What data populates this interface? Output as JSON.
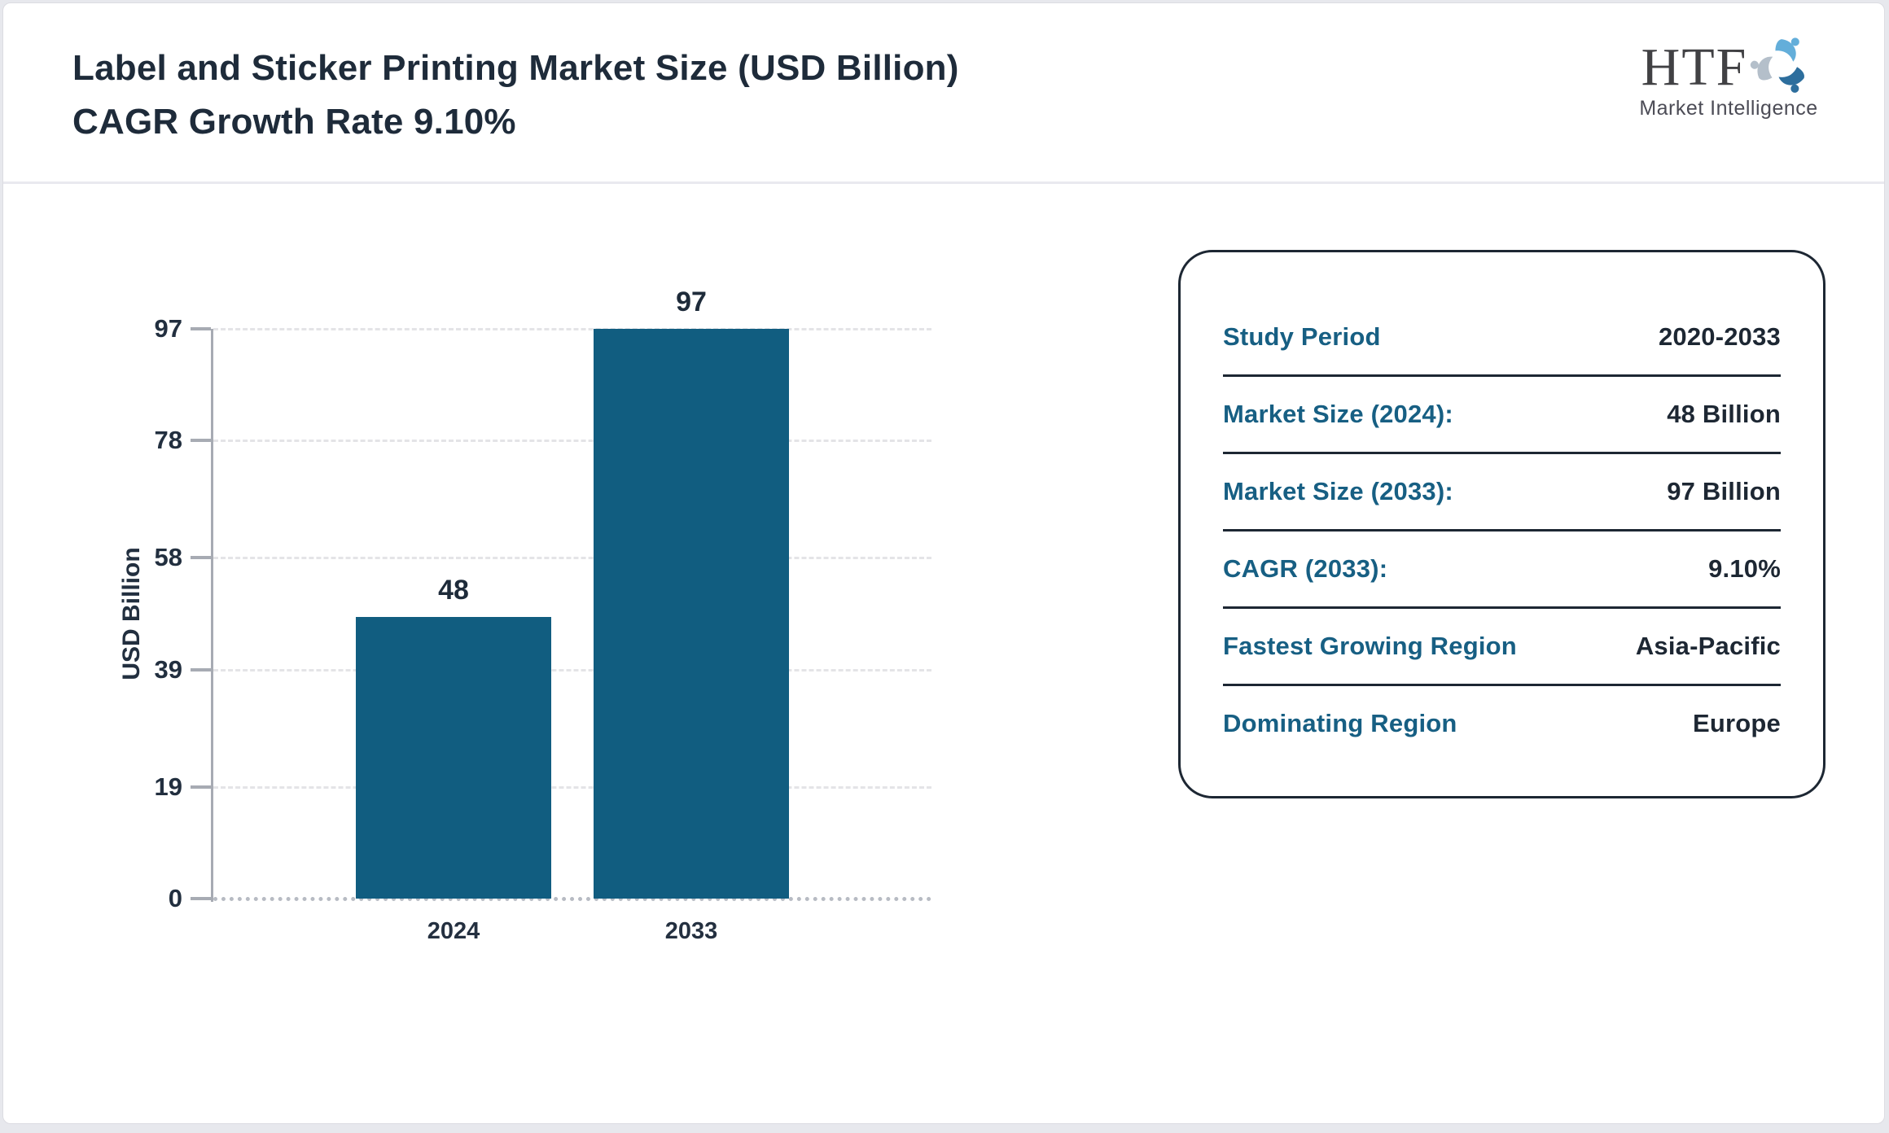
{
  "header": {
    "title": "Label and Sticker Printing Market Size (USD Billion) CAGR Growth Rate 9.10%",
    "logo": {
      "text": "HTF",
      "subtext": "Market Intelligence"
    }
  },
  "chart_data": {
    "type": "bar",
    "title": "Label and Sticker Printing Market Size (USD Billion) CAGR Growth Rate 9.10%",
    "categories": [
      "2024",
      "2033"
    ],
    "values": [
      48,
      97
    ],
    "data_labels": [
      "48",
      "97"
    ],
    "xlabel": "",
    "ylabel": "USD Billion",
    "ylim": [
      0,
      97
    ],
    "yticks": [
      0,
      19,
      39,
      58,
      78,
      97
    ],
    "grid": "horizontal-dashed",
    "legend": "none",
    "bar_color": "#115d80"
  },
  "info_card": {
    "rows": [
      {
        "label": "Study Period",
        "value": "2020-2033"
      },
      {
        "label": "Market Size (2024):",
        "value": "48 Billion"
      },
      {
        "label": "Market Size (2033):",
        "value": "97 Billion"
      },
      {
        "label": "CAGR (2033):",
        "value": "9.10%"
      },
      {
        "label": "Fastest Growing Region",
        "value": "Asia-Pacific"
      },
      {
        "label": "Dominating Region",
        "value": "Europe"
      }
    ]
  },
  "colors": {
    "bar": "#115d80",
    "label_teal": "#175f83",
    "value_navy": "#1d2733",
    "title_navy": "#1e2b3a",
    "page_background": "#e7e8ed",
    "logo_light_blue": "#63aeda",
    "logo_dark_blue": "#2d6e9d",
    "logo_gray": "#b4bfca"
  }
}
